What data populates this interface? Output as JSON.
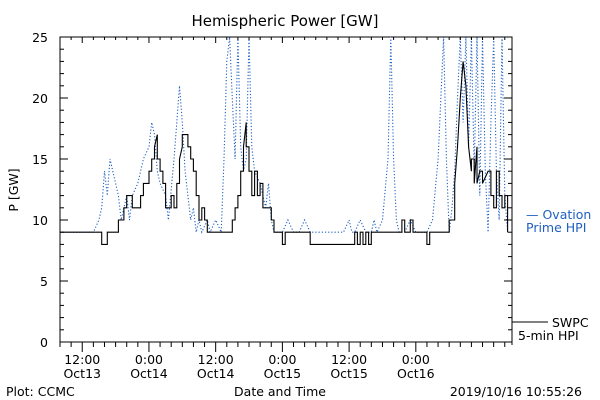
{
  "footer": {
    "left": "Plot: CCMC",
    "center": "Date and Time",
    "right": "2019/10/16 10:55:26"
  },
  "colors": {
    "swpc": "#000000",
    "ovation": "#2060c0"
  },
  "chart_data": {
    "type": "line",
    "title": "Hemispheric Power [GW]",
    "ylabel": "P [GW]",
    "xlabel": "Date and Time",
    "ylim": [
      0,
      25
    ],
    "yticks": [
      0,
      5,
      10,
      15,
      20,
      25
    ],
    "xlim_hours": [
      -16,
      65.3
    ],
    "xticks": [
      {
        "h": -12,
        "label": "12:00",
        "date": "Oct13"
      },
      {
        "h": 0,
        "label": "0:00",
        "date": "Oct14"
      },
      {
        "h": 12,
        "label": "12:00",
        "date": "Oct14"
      },
      {
        "h": 24,
        "label": "0:00",
        "date": "Oct15"
      },
      {
        "h": 36,
        "label": "12:00",
        "date": "Oct15"
      },
      {
        "h": 48,
        "label": "0:00",
        "date": "Oct16"
      }
    ],
    "legend": {
      "swpc": [
        "SWPC",
        "5-min HPI"
      ],
      "ovation": [
        "— Ovation",
        "Prime HPI"
      ]
    },
    "series": [
      {
        "name": "SWPC 5-min HPI",
        "style": "solid",
        "points": [
          [
            -16,
            9
          ],
          [
            -8.5,
            9
          ],
          [
            -8.5,
            8
          ],
          [
            -7.5,
            8
          ],
          [
            -7.5,
            9
          ],
          [
            -5.5,
            9
          ],
          [
            -5.5,
            10
          ],
          [
            -4.5,
            10
          ],
          [
            -4.5,
            11
          ],
          [
            -4,
            11
          ],
          [
            -4,
            12
          ],
          [
            -3,
            12
          ],
          [
            -3,
            11
          ],
          [
            -1.5,
            11
          ],
          [
            -1.5,
            12
          ],
          [
            -1,
            12
          ],
          [
            -1,
            13
          ],
          [
            0,
            13
          ],
          [
            0,
            14
          ],
          [
            0.5,
            14
          ],
          [
            0.5,
            15
          ],
          [
            1,
            15
          ],
          [
            1,
            16
          ],
          [
            1.5,
            17
          ],
          [
            1.5,
            15
          ],
          [
            2,
            15
          ],
          [
            2,
            14
          ],
          [
            2.5,
            14
          ],
          [
            2.5,
            13
          ],
          [
            3,
            13
          ],
          [
            3,
            11
          ],
          [
            4,
            11
          ],
          [
            4,
            12
          ],
          [
            4.5,
            12
          ],
          [
            4.5,
            11
          ],
          [
            5,
            11
          ],
          [
            5,
            13
          ],
          [
            5.5,
            13
          ],
          [
            5.5,
            15
          ],
          [
            6,
            16
          ],
          [
            6,
            17
          ],
          [
            7,
            17
          ],
          [
            7,
            16
          ],
          [
            7.5,
            16
          ],
          [
            7.5,
            15
          ],
          [
            8,
            15
          ],
          [
            8,
            14
          ],
          [
            8.5,
            14
          ],
          [
            8.5,
            12
          ],
          [
            9,
            12
          ],
          [
            9,
            10
          ],
          [
            9.5,
            10
          ],
          [
            9.5,
            11
          ],
          [
            10,
            11
          ],
          [
            10,
            10
          ],
          [
            10.5,
            10
          ],
          [
            10.5,
            9
          ],
          [
            15,
            9
          ],
          [
            15,
            10
          ],
          [
            15.5,
            10
          ],
          [
            15.5,
            11
          ],
          [
            16,
            11
          ],
          [
            16,
            12
          ],
          [
            16.5,
            12
          ],
          [
            16.5,
            14
          ],
          [
            17,
            14
          ],
          [
            17,
            16
          ],
          [
            17.5,
            18
          ],
          [
            17.5,
            16
          ],
          [
            18,
            16
          ],
          [
            18,
            14
          ],
          [
            18.5,
            14
          ],
          [
            18.5,
            12
          ],
          [
            19,
            12
          ],
          [
            19,
            14
          ],
          [
            19.5,
            14
          ],
          [
            19.5,
            12
          ],
          [
            20,
            12
          ],
          [
            20,
            13
          ],
          [
            20.5,
            13
          ],
          [
            20.5,
            11
          ],
          [
            22,
            11
          ],
          [
            22,
            10
          ],
          [
            22.5,
            10
          ],
          [
            22.5,
            9
          ],
          [
            24,
            9
          ],
          [
            24,
            8
          ],
          [
            24.5,
            8
          ],
          [
            24.5,
            9
          ],
          [
            29,
            9
          ],
          [
            29,
            8
          ],
          [
            37,
            8
          ],
          [
            37,
            9
          ],
          [
            37.5,
            9
          ],
          [
            37.5,
            8
          ],
          [
            38,
            8
          ],
          [
            38,
            9
          ],
          [
            38.5,
            9
          ],
          [
            38.5,
            8
          ],
          [
            39,
            8
          ],
          [
            39,
            9
          ],
          [
            39.5,
            9
          ],
          [
            39.5,
            8
          ],
          [
            40,
            8
          ],
          [
            40,
            9
          ],
          [
            45.5,
            9
          ],
          [
            45.5,
            10
          ],
          [
            46,
            10
          ],
          [
            46,
            9
          ],
          [
            47,
            9
          ],
          [
            47,
            10
          ],
          [
            47.5,
            10
          ],
          [
            47.5,
            9
          ],
          [
            50,
            9
          ],
          [
            50,
            8
          ],
          [
            50.5,
            8
          ],
          [
            50.5,
            9
          ],
          [
            54,
            9
          ],
          [
            54,
            10
          ],
          [
            55,
            10
          ],
          [
            55,
            13
          ],
          [
            55.5,
            16
          ],
          [
            56,
            20
          ],
          [
            56.5,
            23
          ],
          [
            57,
            21
          ],
          [
            57.5,
            16
          ],
          [
            58,
            14
          ],
          [
            58,
            15
          ],
          [
            58.5,
            15
          ],
          [
            58.5,
            13
          ],
          [
            59,
            16
          ],
          [
            59,
            13
          ],
          [
            59.5,
            14
          ],
          [
            60,
            14
          ],
          [
            60,
            13
          ],
          [
            61,
            14
          ],
          [
            61.5,
            14
          ],
          [
            61.5,
            12
          ],
          [
            62,
            12
          ],
          [
            62,
            11
          ],
          [
            62.5,
            11
          ],
          [
            62.5,
            14
          ],
          [
            63,
            14
          ],
          [
            63,
            12
          ],
          [
            63.5,
            12
          ],
          [
            63.5,
            11
          ],
          [
            64,
            11
          ],
          [
            64,
            12
          ],
          [
            64.5,
            12
          ],
          [
            64.5,
            9
          ]
        ]
      },
      {
        "name": "Ovation Prime HPI",
        "style": "dotted",
        "points": [
          [
            -16,
            9
          ],
          [
            -10,
            9
          ],
          [
            -9,
            10
          ],
          [
            -8.5,
            11
          ],
          [
            -8,
            14
          ],
          [
            -7.5,
            12
          ],
          [
            -7,
            15
          ],
          [
            -6.5,
            14
          ],
          [
            -6,
            13
          ],
          [
            -5.5,
            12
          ],
          [
            -5,
            10
          ],
          [
            -4.5,
            11
          ],
          [
            -4,
            12
          ],
          [
            -3.5,
            10
          ],
          [
            -3,
            12
          ],
          [
            -2,
            13
          ],
          [
            -1,
            15
          ],
          [
            0,
            16
          ],
          [
            0.5,
            18
          ],
          [
            1,
            17
          ],
          [
            1.5,
            14
          ],
          [
            2,
            13
          ],
          [
            3,
            12
          ],
          [
            3.5,
            10
          ],
          [
            4.5,
            15
          ],
          [
            5,
            18
          ],
          [
            5.5,
            21
          ],
          [
            6,
            18
          ],
          [
            6.5,
            14
          ],
          [
            7,
            12
          ],
          [
            7.5,
            10
          ],
          [
            8,
            11
          ],
          [
            8.5,
            9
          ],
          [
            9,
            10
          ],
          [
            9.5,
            9
          ],
          [
            10.5,
            10
          ],
          [
            11,
            9
          ],
          [
            12,
            10
          ],
          [
            13,
            9
          ],
          [
            13.5,
            15
          ],
          [
            14,
            23
          ],
          [
            14.5,
            25
          ],
          [
            15,
            20
          ],
          [
            15.5,
            15
          ],
          [
            16,
            25
          ],
          [
            16.5,
            16
          ],
          [
            17,
            14
          ],
          [
            17.5,
            15
          ],
          [
            18,
            25
          ],
          [
            18.5,
            16
          ],
          [
            19,
            14
          ],
          [
            20,
            13
          ],
          [
            20.5,
            12
          ],
          [
            21,
            11
          ],
          [
            21.5,
            13
          ],
          [
            22,
            10
          ],
          [
            22.5,
            9
          ],
          [
            24,
            9
          ],
          [
            25,
            10
          ],
          [
            26,
            9
          ],
          [
            27,
            9
          ],
          [
            28,
            10
          ],
          [
            29,
            9
          ],
          [
            35,
            9
          ],
          [
            36,
            10
          ],
          [
            36.5,
            9
          ],
          [
            37,
            9
          ],
          [
            38,
            10
          ],
          [
            39,
            9
          ],
          [
            40,
            9
          ],
          [
            40.5,
            10
          ],
          [
            41,
            9
          ],
          [
            42,
            10
          ],
          [
            43,
            15
          ],
          [
            43.5,
            25
          ],
          [
            44,
            15
          ],
          [
            44.5,
            10
          ],
          [
            45,
            9
          ],
          [
            46,
            9
          ],
          [
            47,
            10
          ],
          [
            48,
            9
          ],
          [
            49,
            9
          ],
          [
            50,
            9
          ],
          [
            51,
            10
          ],
          [
            52,
            15
          ],
          [
            53,
            25
          ],
          [
            53.5,
            15
          ],
          [
            54,
            9
          ],
          [
            54.5,
            11
          ],
          [
            55,
            14
          ],
          [
            55.5,
            20
          ],
          [
            56,
            25
          ],
          [
            56.5,
            18
          ],
          [
            57,
            25
          ],
          [
            57.5,
            16
          ],
          [
            58,
            25
          ],
          [
            58.5,
            14
          ],
          [
            59,
            25
          ],
          [
            59.5,
            12
          ],
          [
            60,
            25
          ],
          [
            60.5,
            14
          ],
          [
            61,
            9
          ],
          [
            61.5,
            18
          ],
          [
            62,
            25
          ],
          [
            62.5,
            14
          ],
          [
            63,
            10
          ],
          [
            63.5,
            25
          ],
          [
            64,
            12
          ],
          [
            64.5,
            9
          ]
        ]
      }
    ]
  }
}
